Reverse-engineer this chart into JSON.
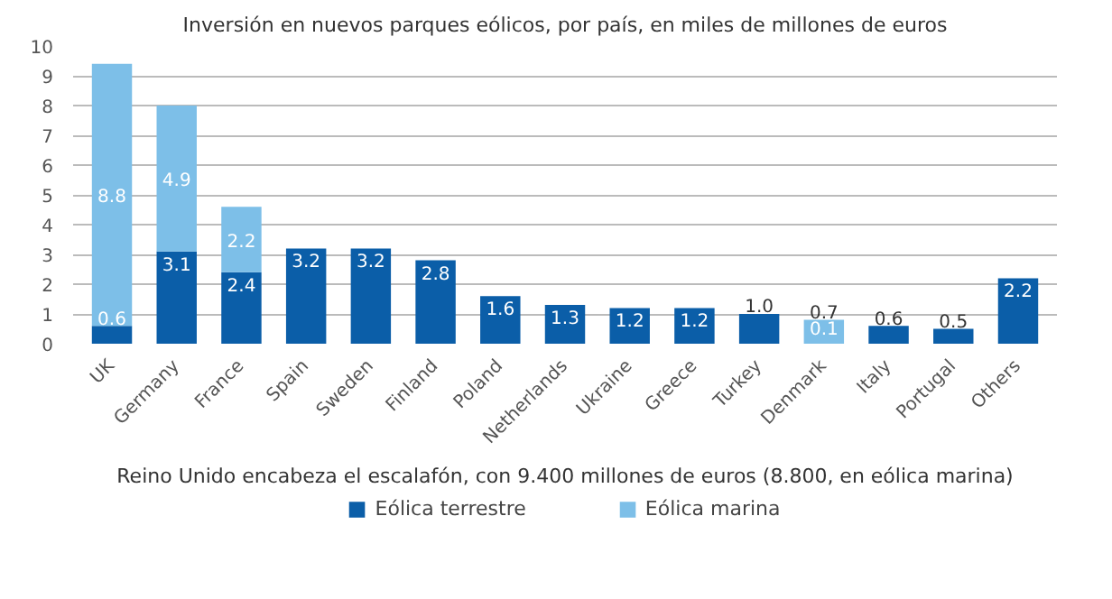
{
  "chart_data": {
    "type": "bar",
    "stacked": true,
    "title": "Inversión en nuevos parques eólicos, por país, en miles de millones de euros",
    "categories": [
      "UK",
      "Germany",
      "France",
      "Spain",
      "Sweden",
      "Finland",
      "Poland",
      "Netherlands",
      "Ukraine",
      "Greece",
      "Turkey",
      "Denmark",
      "Italy",
      "Portugal",
      "Others"
    ],
    "series": [
      {
        "name": "Eólica terrestre",
        "color": "#0b5ea8",
        "colors": [
          "#0b5ea8",
          "#0b5ea8",
          "#0b5ea8",
          "#0b5ea8",
          "#0b5ea8",
          "#0b5ea8",
          "#0b5ea8",
          "#0b5ea8",
          "#0b5ea8",
          "#0b5ea8",
          "#0b5ea8",
          "#7dbfe8",
          "#0b5ea8",
          "#0b5ea8",
          "#0b5ea8"
        ],
        "values": [
          0.6,
          3.1,
          2.4,
          3.2,
          3.2,
          2.8,
          1.6,
          1.3,
          1.2,
          1.2,
          1.0,
          0.7,
          0.6,
          0.5,
          2.2
        ],
        "value_labels": [
          "0.6",
          "3.1",
          "2.4",
          "3.2",
          "3.2",
          "2.8",
          "1.6",
          "1.3",
          "1.2",
          "1.2",
          "1.0",
          "0.7",
          "0.6",
          "0.5",
          "2.2"
        ]
      },
      {
        "name": "Eólica marina",
        "color": "#7dbfe8",
        "values": [
          8.8,
          4.9,
          2.2,
          null,
          null,
          null,
          null,
          null,
          null,
          null,
          null,
          0.1,
          null,
          null,
          null
        ],
        "value_labels": [
          "8.8",
          "4.9",
          "2.2",
          null,
          null,
          null,
          null,
          null,
          null,
          null,
          null,
          "0.1",
          null,
          null,
          null
        ]
      }
    ],
    "data_labels": true,
    "ylim": [
      0,
      10
    ],
    "yticks": [
      0,
      1,
      2,
      3,
      4,
      5,
      6,
      7,
      8,
      9,
      10
    ],
    "grid": "y",
    "legend": "bottom",
    "annotations": [
      "Reino Unido encabeza el escalafón, con 9.400 millones de euros (8.800, en eólica marina)"
    ]
  }
}
